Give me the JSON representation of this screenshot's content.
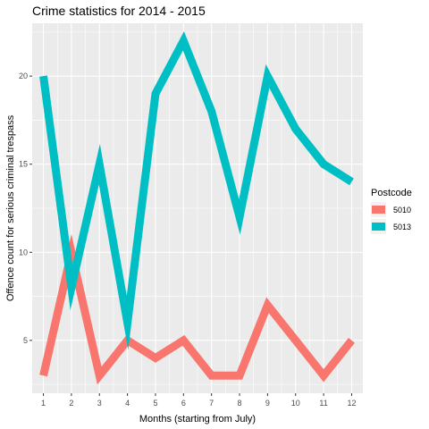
{
  "chart_data": {
    "type": "line",
    "title": "Crime statistics for  2014 - 2015",
    "xlabel": "Months (starting from July)",
    "ylabel": "Offence count for serious criminal trespass",
    "x": [
      1,
      2,
      3,
      4,
      5,
      6,
      7,
      8,
      9,
      10,
      11,
      12
    ],
    "x_tick_labels": [
      "1",
      "2",
      "3",
      "4",
      "5",
      "6",
      "7",
      "8",
      "9",
      "10",
      "11",
      "12"
    ],
    "y_ticks": [
      5,
      10,
      15,
      20
    ],
    "y_tick_labels": [
      "5",
      "10",
      "15",
      "20"
    ],
    "xlim": [
      0.6,
      12.4
    ],
    "ylim": [
      2,
      23
    ],
    "grid": true,
    "legend": {
      "title": "Postcode",
      "placement": "right"
    },
    "series": [
      {
        "name": "5010",
        "color": "#F8766D",
        "values": [
          3,
          10,
          3,
          5,
          4,
          5,
          3,
          3,
          7,
          5,
          3,
          5
        ]
      },
      {
        "name": "5013",
        "color": "#00BFC4",
        "values": [
          20,
          8,
          15,
          6,
          19,
          22,
          18,
          12,
          20,
          17,
          15,
          14
        ]
      }
    ],
    "panel_background": "#EBEBEB",
    "grid_color": "#FFFFFF"
  }
}
